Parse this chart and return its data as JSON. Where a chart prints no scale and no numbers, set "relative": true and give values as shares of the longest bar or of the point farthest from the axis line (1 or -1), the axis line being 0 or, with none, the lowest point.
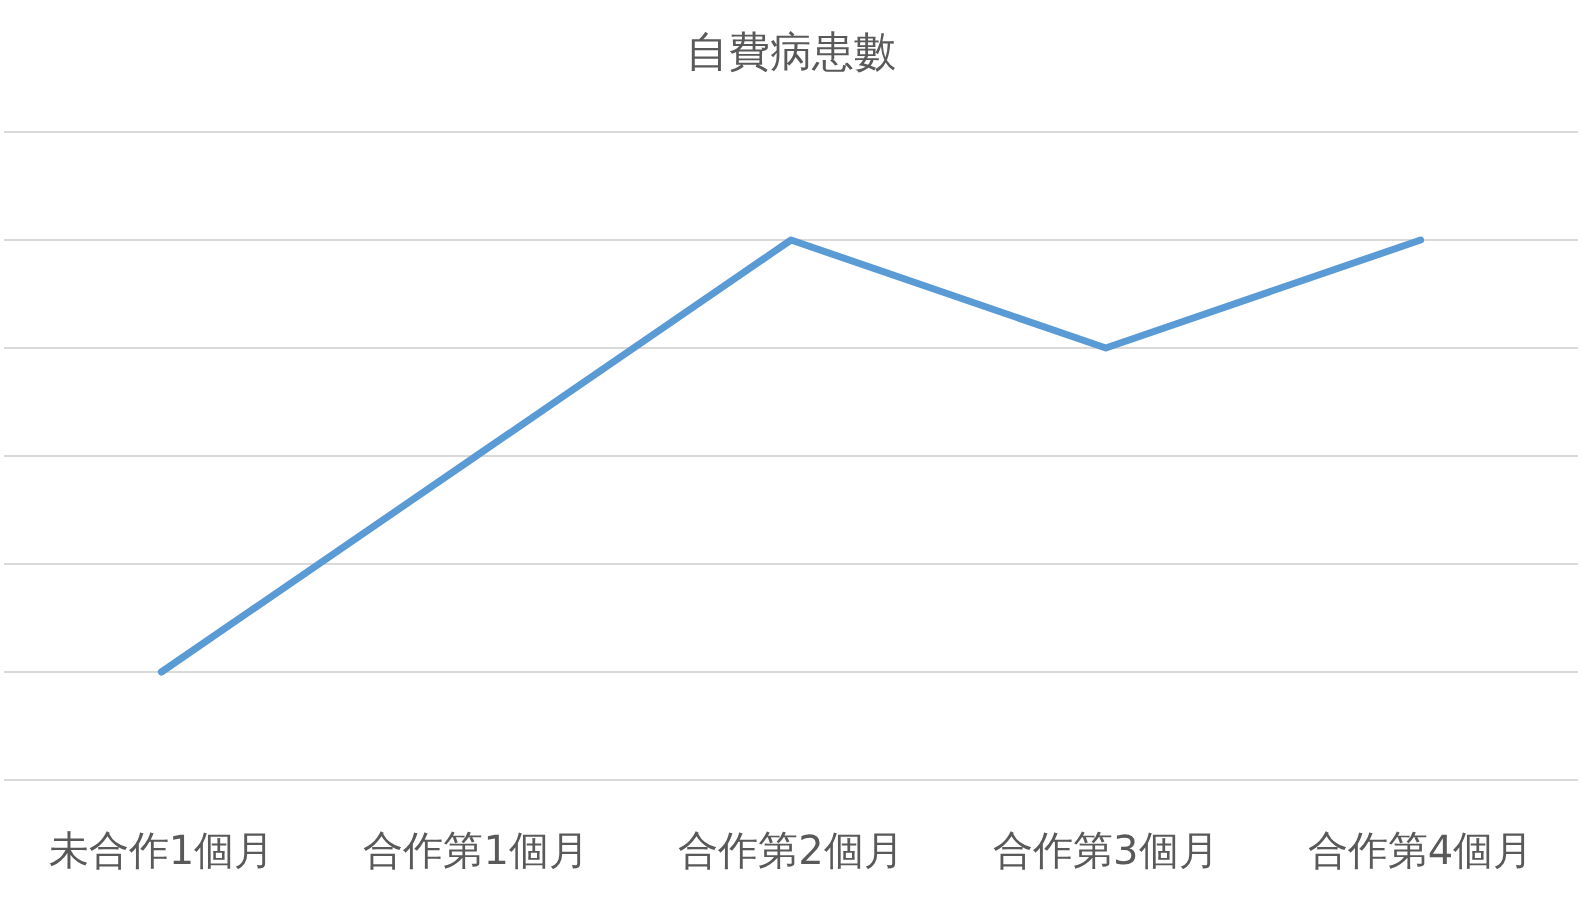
{
  "chart_data": {
    "type": "line",
    "title": "自費病患數",
    "categories": [
      "未合作1個月",
      "合作第1個月",
      "合作第2個月",
      "合作第3個月",
      "合作第4個月"
    ],
    "relative": true,
    "grid": "y",
    "marker": "none",
    "line_style": "solid",
    "series": [
      {
        "color": "#5b9bd5",
        "values": [
          0.2,
          0.6,
          1,
          0.8,
          1
        ]
      }
    ]
  }
}
